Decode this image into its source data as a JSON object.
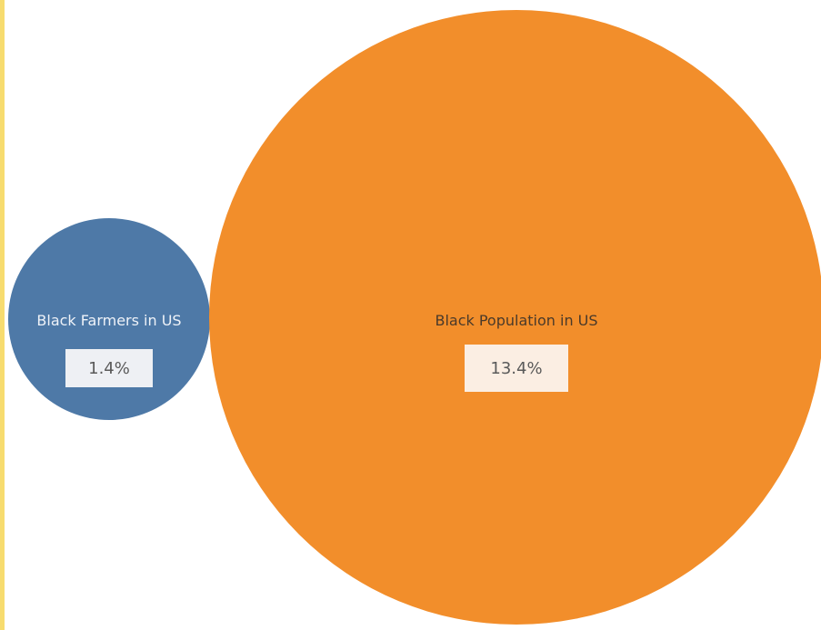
{
  "chart_data": {
    "type": "bubble",
    "series": [
      {
        "name": "Black Farmers in US",
        "value": 1.4,
        "value_label": "1.4%",
        "color": "#4e79a7"
      },
      {
        "name": "Black Population in US",
        "value": 13.4,
        "value_label": "13.4%",
        "color": "#f28e2b"
      }
    ],
    "accent_color": "#f7dc6f"
  }
}
